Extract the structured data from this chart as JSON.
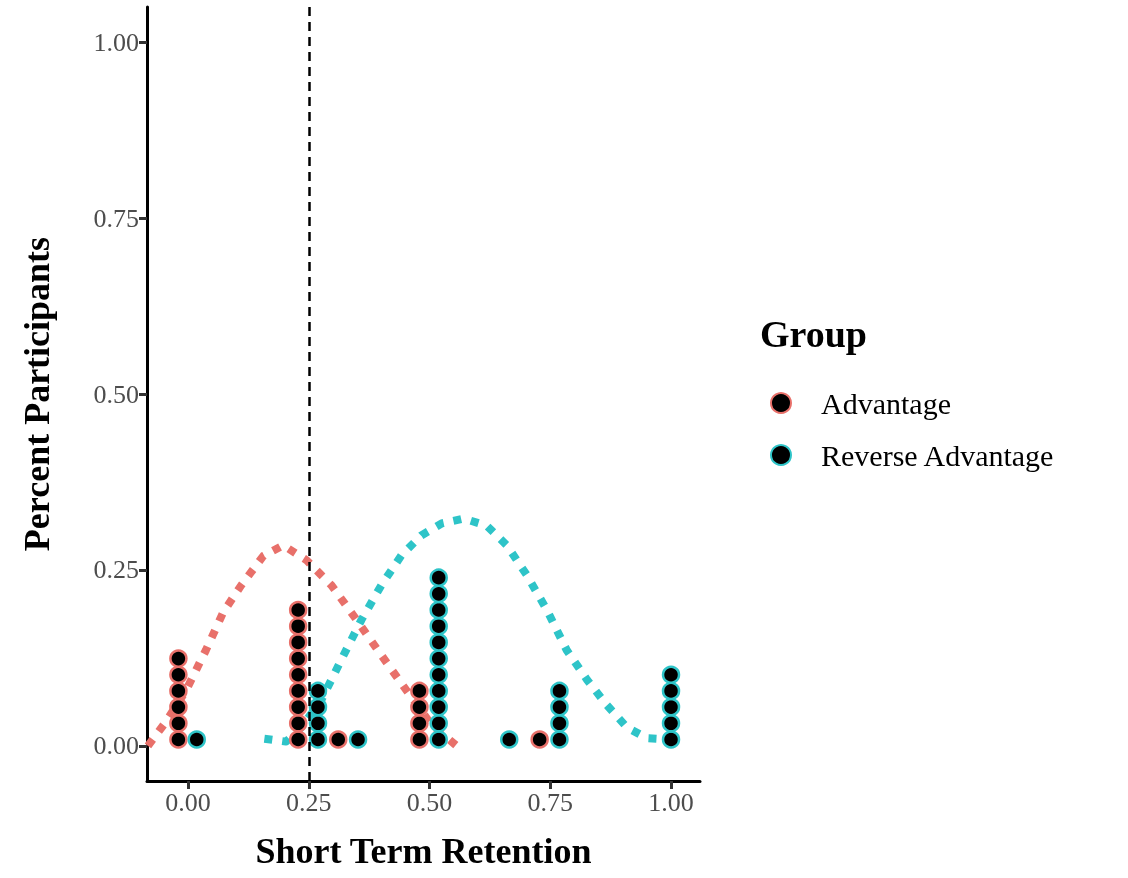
{
  "chart_data": {
    "type": "scatter",
    "xlabel": "Short Term Retention",
    "ylabel": "Percent Participants",
    "legend_title": "Group",
    "legend": "right",
    "grid": false,
    "xlim": [
      -0.085,
      1.06
    ],
    "xticks": [
      {
        "value": 0,
        "label": "0.00"
      },
      {
        "value": 0.25,
        "label": "0.25"
      },
      {
        "value": 0.5,
        "label": "0.50"
      },
      {
        "value": 0.75,
        "label": "0.75"
      },
      {
        "value": 1,
        "label": "1.00"
      }
    ],
    "ylim": [
      -0.05,
      1.05
    ],
    "yticks": [
      {
        "value": 0,
        "label": "0.00"
      },
      {
        "value": 0.25,
        "label": "0.25"
      },
      {
        "value": 0.5,
        "label": "0.50"
      },
      {
        "value": 0.75,
        "label": "0.75"
      },
      {
        "value": 1,
        "label": "1.00"
      }
    ],
    "ref_lines": [
      {
        "axis": "x",
        "value": 0.25,
        "label": null,
        "color": "#000000",
        "line_style": "dashed"
      }
    ],
    "series": [
      {
        "type": "line",
        "color": "#e8706a",
        "marker": "none",
        "line_style": "dotted",
        "x": [
          -0.083,
          -0.046,
          -0.004,
          0.037,
          0.073,
          0.11,
          0.156,
          0.197,
          0.245,
          0.297,
          0.349,
          0.4,
          0.452,
          0.504,
          0.556
        ],
        "values": [
          0,
          0.034,
          0.079,
          0.136,
          0.19,
          0.228,
          0.27,
          0.285,
          0.264,
          0.228,
          0.179,
          0.129,
          0.079,
          0.03,
          0
        ]
      },
      {
        "type": "line",
        "color": "#2ec4c8",
        "marker": "none",
        "line_style": "dotted",
        "x": [
          0.158,
          0.203,
          0.234,
          0.276,
          0.317,
          0.359,
          0.4,
          0.442,
          0.483,
          0.525,
          0.571,
          0.618,
          0.66,
          0.701,
          0.743,
          0.784,
          0.826,
          0.867,
          0.909,
          0.95,
          0.998
        ],
        "values": [
          0.01,
          0.006,
          0.026,
          0.065,
          0.122,
          0.179,
          0.228,
          0.271,
          0.299,
          0.316,
          0.323,
          0.313,
          0.285,
          0.243,
          0.193,
          0.136,
          0.094,
          0.058,
          0.026,
          0.011,
          0.009
        ]
      },
      {
        "name": "Advantage",
        "color": "#e8706a",
        "marker": "circle",
        "x": [
          -0.02,
          -0.02,
          -0.02,
          -0.02,
          -0.02,
          -0.02,
          0.228,
          0.228,
          0.228,
          0.228,
          0.228,
          0.228,
          0.228,
          0.228,
          0.228,
          0.311,
          0.479,
          0.479,
          0.479,
          0.479,
          0.728
        ],
        "values": [
          0.009,
          0.032,
          0.055,
          0.078,
          0.101,
          0.124,
          0.009,
          0.032,
          0.055,
          0.078,
          0.101,
          0.124,
          0.147,
          0.17,
          0.193,
          0.009,
          0.009,
          0.032,
          0.055,
          0.078,
          0.009
        ]
      },
      {
        "name": "Reverse Advantage",
        "color": "#2ec4c8",
        "marker": "circle",
        "x": [
          0.018,
          0.269,
          0.269,
          0.269,
          0.269,
          0.352,
          0.519,
          0.519,
          0.519,
          0.519,
          0.519,
          0.519,
          0.519,
          0.519,
          0.519,
          0.519,
          0.519,
          0.665,
          0.769,
          0.769,
          0.769,
          0.769,
          1.0,
          1.0,
          1.0,
          1.0,
          1.0
        ],
        "values": [
          0.009,
          0.009,
          0.032,
          0.055,
          0.078,
          0.009,
          0.009,
          0.032,
          0.055,
          0.078,
          0.101,
          0.124,
          0.147,
          0.17,
          0.193,
          0.216,
          0.239,
          0.009,
          0.009,
          0.032,
          0.055,
          0.078,
          0.009,
          0.032,
          0.055,
          0.078,
          0.101
        ]
      }
    ]
  }
}
